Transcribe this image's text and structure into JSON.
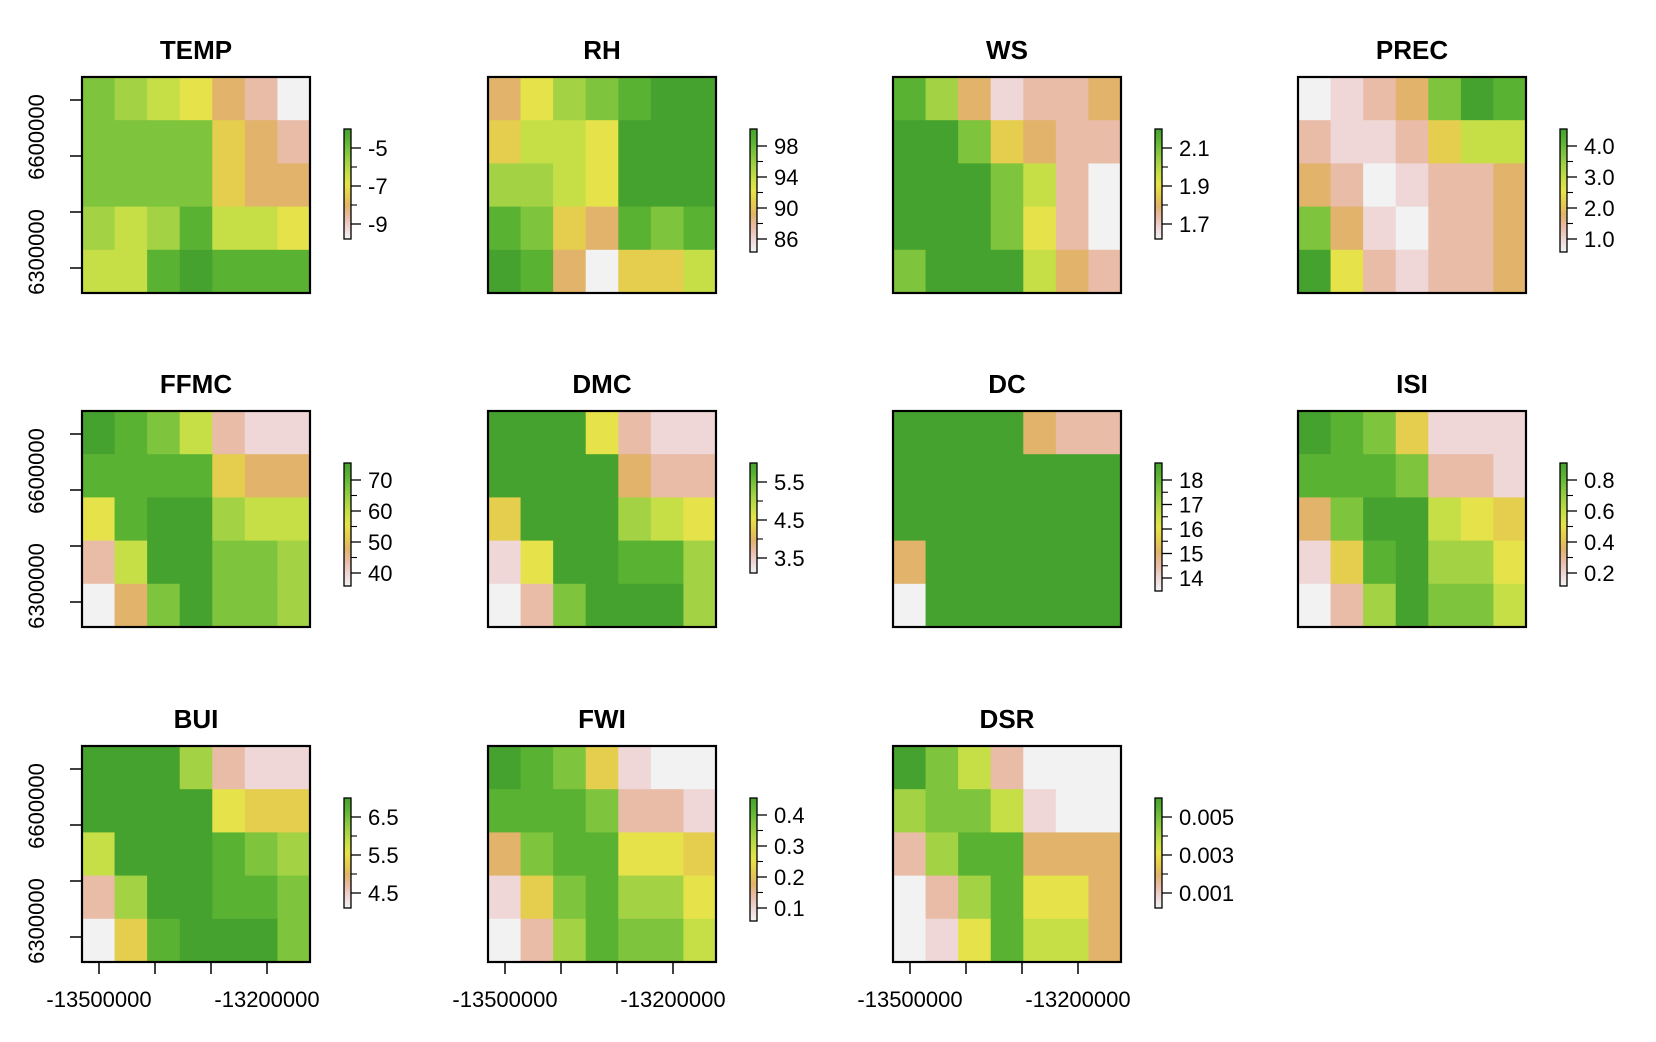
{
  "colors": {
    "ramp": [
      "#f2f2f2",
      "#eed7d6",
      "#e9bca7",
      "#e2b36b",
      "#e5cd4e",
      "#e6e34a",
      "#c6df47",
      "#a3d245",
      "#7fc43d",
      "#5ab233",
      "#46a22e"
    ],
    "frame": "#000000"
  },
  "chart_data": [
    {
      "type": "heatmap",
      "title": "TEMP",
      "legend": {
        "ticks": [
          "-5",
          "-7",
          "-9"
        ]
      },
      "grid": [
        [
          8,
          7,
          6,
          5,
          3,
          2,
          0
        ],
        [
          8,
          8,
          8,
          8,
          4,
          3,
          2
        ],
        [
          8,
          8,
          8,
          8,
          4,
          3,
          3
        ],
        [
          7,
          6,
          7,
          9,
          6,
          6,
          5
        ],
        [
          6,
          6,
          9,
          10,
          9,
          9,
          9
        ]
      ]
    },
    {
      "type": "heatmap",
      "title": "RH",
      "legend": {
        "ticks": [
          "98",
          "94",
          "90",
          "86"
        ]
      },
      "grid": [
        [
          3,
          5,
          7,
          8,
          9,
          10,
          10
        ],
        [
          4,
          6,
          6,
          5,
          10,
          10,
          10
        ],
        [
          7,
          7,
          6,
          5,
          10,
          10,
          10
        ],
        [
          9,
          8,
          4,
          3,
          9,
          8,
          9
        ],
        [
          10,
          9,
          3,
          0,
          4,
          4,
          6
        ]
      ]
    },
    {
      "type": "heatmap",
      "title": "WS",
      "legend": {
        "ticks": [
          "2.1",
          "1.9",
          "1.7"
        ]
      },
      "grid": [
        [
          9,
          7,
          3,
          1,
          2,
          2,
          3
        ],
        [
          10,
          10,
          8,
          4,
          3,
          2,
          2
        ],
        [
          10,
          10,
          10,
          8,
          6,
          2,
          0
        ],
        [
          10,
          10,
          10,
          8,
          5,
          2,
          0
        ],
        [
          8,
          10,
          10,
          10,
          6,
          3,
          2
        ]
      ]
    },
    {
      "type": "heatmap",
      "title": "PREC",
      "legend": {
        "ticks": [
          "4.0",
          "3.0",
          "2.0",
          "1.0"
        ]
      },
      "grid": [
        [
          0,
          1,
          2,
          3,
          8,
          10,
          9
        ],
        [
          2,
          1,
          1,
          2,
          4,
          6,
          6
        ],
        [
          3,
          2,
          0,
          1,
          2,
          2,
          3
        ],
        [
          8,
          3,
          1,
          0,
          2,
          2,
          3
        ],
        [
          10,
          5,
          2,
          1,
          2,
          2,
          3
        ]
      ]
    },
    {
      "type": "heatmap",
      "title": "FFMC",
      "legend": {
        "ticks": [
          "70",
          "60",
          "50",
          "40"
        ]
      },
      "grid": [
        [
          10,
          9,
          8,
          6,
          2,
          1,
          1
        ],
        [
          9,
          9,
          9,
          9,
          4,
          3,
          3
        ],
        [
          5,
          9,
          10,
          10,
          7,
          6,
          6
        ],
        [
          2,
          6,
          10,
          10,
          8,
          8,
          7
        ],
        [
          0,
          3,
          8,
          10,
          8,
          8,
          7
        ]
      ]
    },
    {
      "type": "heatmap",
      "title": "DMC",
      "legend": {
        "ticks": [
          "5.5",
          "4.5",
          "3.5"
        ]
      },
      "grid": [
        [
          10,
          10,
          10,
          5,
          2,
          1,
          1
        ],
        [
          10,
          10,
          10,
          10,
          3,
          2,
          2
        ],
        [
          4,
          10,
          10,
          10,
          7,
          6,
          5
        ],
        [
          1,
          5,
          10,
          10,
          9,
          9,
          7
        ],
        [
          0,
          2,
          8,
          10,
          10,
          10,
          7
        ]
      ]
    },
    {
      "type": "heatmap",
      "title": "DC",
      "legend": {
        "ticks": [
          "18",
          "17",
          "16",
          "15",
          "14"
        ]
      },
      "grid": [
        [
          10,
          10,
          10,
          10,
          3,
          2,
          2
        ],
        [
          10,
          10,
          10,
          10,
          10,
          10,
          10
        ],
        [
          10,
          10,
          10,
          10,
          10,
          10,
          10
        ],
        [
          3,
          10,
          10,
          10,
          10,
          10,
          10
        ],
        [
          0,
          10,
          10,
          10,
          10,
          10,
          10
        ]
      ]
    },
    {
      "type": "heatmap",
      "title": "ISI",
      "legend": {
        "ticks": [
          "0.8",
          "0.6",
          "0.4",
          "0.2"
        ]
      },
      "grid": [
        [
          10,
          9,
          8,
          4,
          1,
          1,
          1
        ],
        [
          9,
          9,
          9,
          8,
          2,
          2,
          1
        ],
        [
          3,
          8,
          10,
          10,
          6,
          5,
          4
        ],
        [
          1,
          4,
          9,
          10,
          7,
          7,
          5
        ],
        [
          0,
          2,
          7,
          10,
          8,
          8,
          6
        ]
      ]
    },
    {
      "type": "heatmap",
      "title": "BUI",
      "legend": {
        "ticks": [
          "6.5",
          "5.5",
          "4.5"
        ]
      },
      "grid": [
        [
          10,
          10,
          10,
          7,
          2,
          1,
          1
        ],
        [
          10,
          10,
          10,
          10,
          5,
          4,
          4
        ],
        [
          6,
          10,
          10,
          10,
          9,
          8,
          7
        ],
        [
          2,
          7,
          10,
          10,
          9,
          9,
          8
        ],
        [
          0,
          4,
          9,
          10,
          10,
          10,
          8
        ]
      ]
    },
    {
      "type": "heatmap",
      "title": "FWI",
      "legend": {
        "ticks": [
          "0.4",
          "0.3",
          "0.2",
          "0.1"
        ]
      },
      "grid": [
        [
          10,
          9,
          8,
          4,
          1,
          0,
          0
        ],
        [
          9,
          9,
          9,
          8,
          2,
          2,
          1
        ],
        [
          3,
          8,
          9,
          9,
          5,
          5,
          4
        ],
        [
          1,
          4,
          8,
          9,
          7,
          7,
          5
        ],
        [
          0,
          2,
          7,
          9,
          8,
          8,
          6
        ]
      ]
    },
    {
      "type": "heatmap",
      "title": "DSR",
      "legend": {
        "ticks": [
          "0.005",
          "0.003",
          "0.001"
        ]
      },
      "grid": [
        [
          10,
          8,
          6,
          2,
          0,
          0,
          0
        ],
        [
          7,
          8,
          8,
          6,
          1,
          0,
          0
        ],
        [
          2,
          7,
          9,
          9,
          3,
          3,
          3
        ],
        [
          0,
          2,
          7,
          9,
          5,
          5,
          3
        ],
        [
          0,
          1,
          5,
          9,
          6,
          6,
          3
        ]
      ]
    }
  ],
  "axes": {
    "y_ticks": [
      "6600000",
      "6300000"
    ],
    "x_ticks": [
      "-13500000",
      "-13200000"
    ]
  }
}
